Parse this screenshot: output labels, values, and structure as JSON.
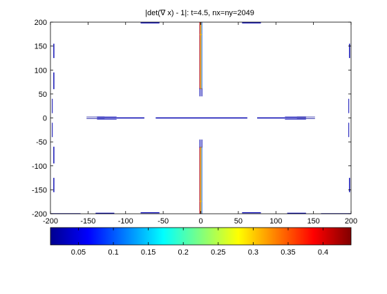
{
  "chart_data": {
    "type": "line",
    "title": "|det(∇ x) - 1|: t=4.5, nx=ny=2049",
    "xlabel": "",
    "ylabel": "",
    "xlim": [
      -200,
      200
    ],
    "ylim": [
      -200,
      200
    ],
    "xticks": [
      -200,
      -150,
      -100,
      -50,
      0,
      50,
      100,
      150,
      200
    ],
    "yticks": [
      -200,
      -150,
      -100,
      -50,
      0,
      50,
      100,
      150,
      200
    ],
    "x_tick_labels": [
      "-200",
      "-150",
      "-100",
      "-50",
      "0",
      "50",
      "100",
      "150",
      "200"
    ],
    "y_tick_labels": [
      "200",
      "150",
      "100",
      "50",
      "0",
      "-50",
      "-100",
      "-150",
      "-200"
    ],
    "grid": false,
    "colormap": "jet",
    "colorbar": {
      "location": "south",
      "range": [
        0.01,
        0.44
      ],
      "ticks": [
        0.05,
        0.1,
        0.15,
        0.2,
        0.25,
        0.3,
        0.35,
        0.4
      ],
      "tick_labels": [
        "0.05",
        "0.1",
        "0.15",
        "0.2",
        "0.25",
        "0.3",
        "0.35",
        "0.4"
      ]
    },
    "series": [
      {
        "x": [
          -152,
          -128
        ],
        "y": [
          -1.5,
          -1.5
        ],
        "value": 0.02,
        "width": 0.7
      },
      {
        "x": [
          -152,
          -128
        ],
        "y": [
          2,
          2
        ],
        "value": 0.02,
        "width": 0.7
      },
      {
        "x": [
          -138,
          -112
        ],
        "y": [
          -2,
          -2
        ],
        "value": 0.03,
        "width": 1.4
      },
      {
        "x": [
          -138,
          -112
        ],
        "y": [
          1.5,
          1.5
        ],
        "value": 0.03,
        "width": 1.4
      },
      {
        "x": [
          -112,
          -75
        ],
        "y": [
          0,
          0
        ],
        "value": 0.03,
        "width": 1.4
      },
      {
        "x": [
          -60,
          62
        ],
        "y": [
          0,
          0
        ],
        "value": 0.03,
        "width": 1.4
      },
      {
        "x": [
          75,
          112
        ],
        "y": [
          0,
          0
        ],
        "value": 0.03,
        "width": 1.4
      },
      {
        "x": [
          112,
          140
        ],
        "y": [
          -2,
          -2
        ],
        "value": 0.03,
        "width": 1.4
      },
      {
        "x": [
          112,
          140
        ],
        "y": [
          1.5,
          1.5
        ],
        "value": 0.03,
        "width": 1.4
      },
      {
        "x": [
          128,
          152
        ],
        "y": [
          -1.5,
          -1.5
        ],
        "value": 0.02,
        "width": 0.7
      },
      {
        "x": [
          128,
          152
        ],
        "y": [
          2,
          2
        ],
        "value": 0.02,
        "width": 0.7
      },
      {
        "x": [
          -1.2,
          -1.2
        ],
        "y": [
          200,
          60
        ],
        "value": 0.42,
        "width": 1.2
      },
      {
        "x": [
          0.3,
          0.3
        ],
        "y": [
          200,
          60
        ],
        "value": 0.3,
        "width": 1.2
      },
      {
        "x": [
          1.5,
          1.5
        ],
        "y": [
          200,
          60
        ],
        "value": 0.1,
        "width": 1.0
      },
      {
        "x": [
          -1.2,
          -1.2
        ],
        "y": [
          -200,
          -60
        ],
        "value": 0.42,
        "width": 1.2
      },
      {
        "x": [
          0.3,
          0.3
        ],
        "y": [
          -200,
          -60
        ],
        "value": 0.3,
        "width": 1.2
      },
      {
        "x": [
          1.5,
          1.5
        ],
        "y": [
          -200,
          -60
        ],
        "value": 0.1,
        "width": 1.0
      },
      {
        "x": [
          -1,
          -1
        ],
        "y": [
          62,
          45
        ],
        "value": 0.03,
        "width": 1.2
      },
      {
        "x": [
          1.5,
          1.5
        ],
        "y": [
          62,
          45
        ],
        "value": 0.03,
        "width": 1.2
      },
      {
        "x": [
          -1,
          -1
        ],
        "y": [
          -62,
          -45
        ],
        "value": 0.03,
        "width": 1.2
      },
      {
        "x": [
          1.5,
          1.5
        ],
        "y": [
          -62,
          -45
        ],
        "value": 0.03,
        "width": 1.2
      },
      {
        "x": [
          -1.2,
          1.5
        ],
        "y": [
          174,
          174
        ],
        "value": 0.3,
        "width": 1.0
      },
      {
        "x": [
          -1.2,
          1.5
        ],
        "y": [
          -174,
          -174
        ],
        "value": 0.3,
        "width": 1.0
      },
      {
        "x": [
          -195.5,
          -195.5
        ],
        "y": [
          155,
          125
        ],
        "value": 0.03,
        "width": 1.4
      },
      {
        "x": [
          -195.5,
          -195.5
        ],
        "y": [
          95,
          60
        ],
        "value": 0.03,
        "width": 1.4
      },
      {
        "x": [
          -197.5,
          -197.5
        ],
        "y": [
          40,
          10
        ],
        "value": 0.03,
        "width": 1.0
      },
      {
        "x": [
          -197.5,
          -197.5
        ],
        "y": [
          -10,
          -40
        ],
        "value": 0.03,
        "width": 1.0
      },
      {
        "x": [
          -195.5,
          -195.5
        ],
        "y": [
          -60,
          -95
        ],
        "value": 0.03,
        "width": 1.4
      },
      {
        "x": [
          -195.5,
          -195.5
        ],
        "y": [
          -125,
          -155
        ],
        "value": 0.03,
        "width": 1.4
      },
      {
        "x": [
          198,
          198
        ],
        "y": [
          155,
          125
        ],
        "value": 0.03,
        "width": 1.4
      },
      {
        "x": [
          198,
          198
        ],
        "y": [
          -125,
          -155
        ],
        "value": 0.03,
        "width": 1.4
      },
      {
        "x": [
          197,
          197
        ],
        "y": [
          40,
          10
        ],
        "value": 0.03,
        "width": 1.0
      },
      {
        "x": [
          197,
          197
        ],
        "y": [
          -10,
          -40
        ],
        "value": 0.03,
        "width": 1.0
      },
      {
        "x": [
          -80,
          -55
        ],
        "y": [
          -198,
          -198
        ],
        "value": 0.03,
        "width": 1.4
      },
      {
        "x": [
          -140,
          -115
        ],
        "y": [
          -199,
          -199
        ],
        "value": 0.03,
        "width": 1.4
      },
      {
        "x": [
          -200,
          -160
        ],
        "y": [
          -199.5,
          -199.5
        ],
        "value": 0.02,
        "width": 1.0
      },
      {
        "x": [
          55,
          80
        ],
        "y": [
          -198,
          -198
        ],
        "value": 0.03,
        "width": 1.4
      },
      {
        "x": [
          115,
          140
        ],
        "y": [
          -199,
          -199
        ],
        "value": 0.03,
        "width": 1.4
      },
      {
        "x": [
          160,
          200
        ],
        "y": [
          -199.5,
          -199.5
        ],
        "value": 0.02,
        "width": 1.0
      },
      {
        "x": [
          -80,
          -55
        ],
        "y": [
          198.5,
          198.5
        ],
        "value": 0.03,
        "width": 1.4
      },
      {
        "x": [
          55,
          80
        ],
        "y": [
          198.5,
          198.5
        ],
        "value": 0.03,
        "width": 1.4
      }
    ]
  }
}
